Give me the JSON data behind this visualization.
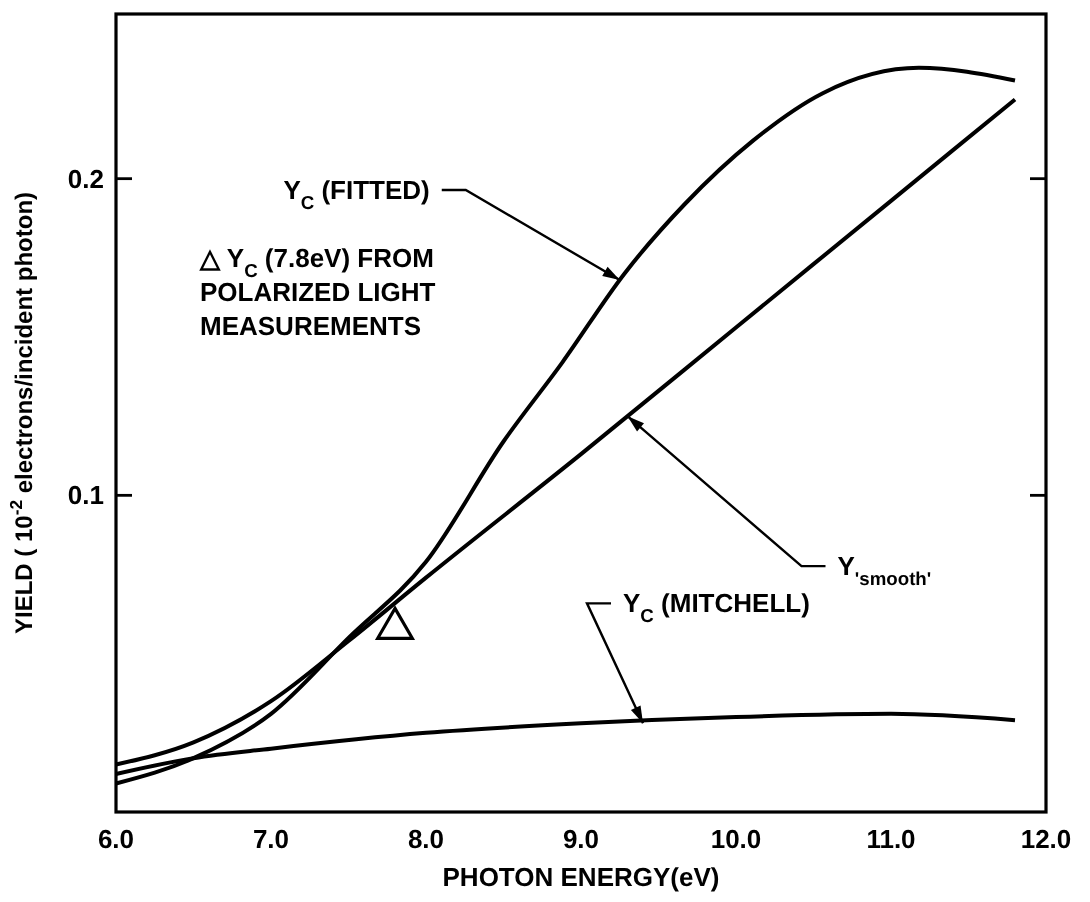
{
  "chart_data": {
    "type": "line",
    "xlabel": "PHOTON ENERGY(eV)",
    "ylabel": "YIELD ( 10$^{-2}$ electrons/incident photon)",
    "xlim": [
      6,
      12.0
    ],
    "ylim": [
      0,
      0.252
    ],
    "xticks": [
      {
        "value": 6,
        "label": "6.0"
      },
      {
        "value": 7,
        "label": "7.0"
      },
      {
        "value": 8,
        "label": "8.0"
      },
      {
        "value": 9,
        "label": "9.0"
      },
      {
        "value": 10,
        "label": "10.0"
      },
      {
        "value": 11,
        "label": "11.0"
      },
      {
        "value": 12,
        "label": "12.0"
      }
    ],
    "yticks": [
      0.1,
      0.2
    ],
    "grid": false,
    "line_style": "solid",
    "series": [
      {
        "color": "#000000",
        "x": [
          6.0,
          6.5,
          7.0,
          7.5,
          8.0,
          8.5,
          8.88,
          9.28,
          9.67,
          10.11,
          10.56,
          11.18,
          11.8
        ],
        "values": [
          0.009,
          0.017,
          0.031,
          0.055,
          0.079,
          0.117,
          0.142,
          0.17,
          0.192,
          0.212,
          0.227,
          0.235,
          0.231
        ]
      },
      {
        "color": "#000000",
        "x": [
          6.0,
          6.5,
          7.0,
          7.5,
          8.0,
          9.0,
          10.0,
          11.0,
          11.8
        ],
        "values": [
          0.015,
          0.022,
          0.035,
          0.054,
          0.074,
          0.113,
          0.153,
          0.193,
          0.225
        ]
      },
      {
        "color": "#000000",
        "x": [
          6.0,
          6.5,
          7.0,
          8.0,
          9.0,
          10.0,
          11.0,
          11.8
        ],
        "values": [
          0.012,
          0.017,
          0.02,
          0.025,
          0.028,
          0.03,
          0.031,
          0.029
        ]
      },
      {
        "type": "scatter",
        "marker": "triangle",
        "color": "#000000",
        "x": [
          7.8
        ],
        "values": [
          0.058
        ]
      }
    ],
    "annotations": [
      {
        "text": "Y$_{C}$ (FITTED)",
        "x": 9.25,
        "y": 0.168
      },
      {
        "text": "Y$_{'smooth'}$",
        "x": 9.3,
        "y": 0.125
      },
      {
        "text": "Y$_{C}$ (MITCHELL)",
        "x": 9.4,
        "y": 0.028
      },
      "△ Y$_{C}$ (7.8eV) FROM\nPOLARIZED LIGHT\nMEASUREMENTS"
    ]
  }
}
